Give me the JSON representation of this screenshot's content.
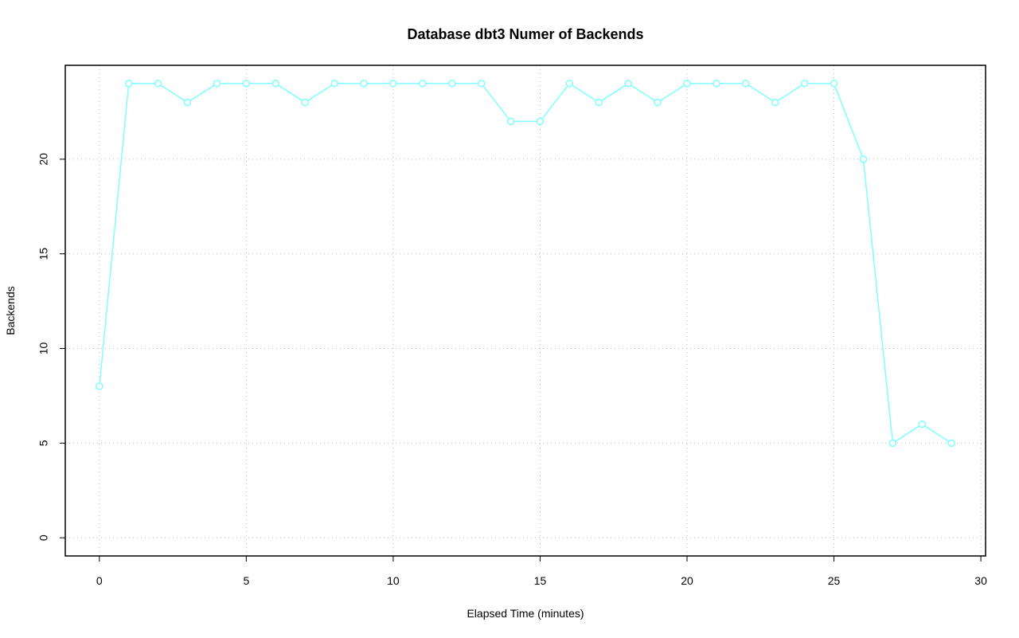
{
  "chart_data": {
    "type": "line",
    "title": "Database dbt3 Numer of Backends",
    "x_label": "Elapsed Time (minutes)",
    "y_label": "Backends",
    "x": [
      0,
      1,
      2,
      3,
      4,
      5,
      6,
      7,
      8,
      9,
      10,
      11,
      12,
      13,
      14,
      15,
      16,
      17,
      18,
      19,
      20,
      21,
      22,
      23,
      24,
      25,
      26,
      27,
      28,
      29
    ],
    "series": [
      {
        "color": "#7fffff",
        "values": [
          8,
          24,
          24,
          23,
          24,
          24,
          24,
          23,
          24,
          24,
          24,
          24,
          24,
          24,
          22,
          22,
          24,
          23,
          24,
          23,
          24,
          24,
          24,
          23,
          24,
          24,
          20,
          5,
          6,
          5
        ]
      }
    ],
    "xlim": [
      -1.16,
      30.16
    ],
    "xticks": [
      0,
      5,
      10,
      15,
      20,
      25,
      30
    ],
    "ylim": [
      -0.96,
      24.96
    ],
    "yticks": [
      0,
      5,
      10,
      15,
      20
    ],
    "grid": true
  }
}
